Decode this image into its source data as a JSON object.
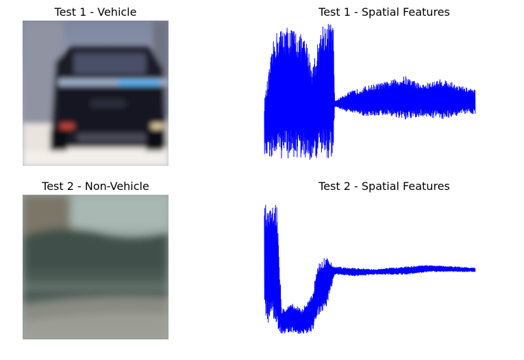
{
  "figure": {
    "panels": [
      {
        "title": "Test 1 - Vehicle",
        "image_label": "vehicle"
      },
      {
        "title": "Test 1 - Spatial Features"
      },
      {
        "title": "Test 2 - Non-Vehicle",
        "image_label": "non-vehicle"
      },
      {
        "title": "Test 2 - Spatial Features"
      }
    ]
  },
  "chart_data": [
    {
      "type": "line",
      "title": "Test 1 - Spatial Features",
      "axis": "off",
      "grid": false,
      "x_count": 3072,
      "series": [
        {
          "color": "#0000ff",
          "envelope": [
            {
              "x": 0,
              "low": 0.05,
              "high": 0.45
            },
            {
              "x": 150,
              "low": 0.03,
              "high": 0.92
            },
            {
              "x": 300,
              "low": 0.03,
              "high": 0.98
            },
            {
              "x": 450,
              "low": 0.03,
              "high": 0.95
            },
            {
              "x": 600,
              "low": 0.02,
              "high": 0.88
            },
            {
              "x": 700,
              "low": 0.02,
              "high": 0.7
            },
            {
              "x": 850,
              "low": 0.04,
              "high": 1.0
            },
            {
              "x": 1000,
              "low": 0.03,
              "high": 1.0
            },
            {
              "x": 1024,
              "low": 0.4,
              "high": 0.44
            },
            {
              "x": 1200,
              "low": 0.36,
              "high": 0.5
            },
            {
              "x": 1500,
              "low": 0.33,
              "high": 0.55
            },
            {
              "x": 1800,
              "low": 0.34,
              "high": 0.58
            },
            {
              "x": 2048,
              "low": 0.3,
              "high": 0.62
            },
            {
              "x": 2300,
              "low": 0.33,
              "high": 0.56
            },
            {
              "x": 2600,
              "low": 0.31,
              "high": 0.6
            },
            {
              "x": 2850,
              "low": 0.34,
              "high": 0.55
            },
            {
              "x": 3071,
              "low": 0.35,
              "high": 0.52
            }
          ]
        }
      ]
    },
    {
      "type": "line",
      "title": "Test 2 - Spatial Features",
      "axis": "off",
      "grid": false,
      "x_count": 3072,
      "series": [
        {
          "color": "#0000ff",
          "envelope": [
            {
              "x": 0,
              "low": 0.12,
              "high": 0.95
            },
            {
              "x": 100,
              "low": 0.08,
              "high": 0.98
            },
            {
              "x": 180,
              "low": 0.06,
              "high": 0.96
            },
            {
              "x": 250,
              "low": 0.02,
              "high": 0.2
            },
            {
              "x": 400,
              "low": 0.03,
              "high": 0.24
            },
            {
              "x": 550,
              "low": 0.01,
              "high": 0.2
            },
            {
              "x": 700,
              "low": 0.04,
              "high": 0.3
            },
            {
              "x": 780,
              "low": 0.14,
              "high": 0.55
            },
            {
              "x": 900,
              "low": 0.2,
              "high": 0.58
            },
            {
              "x": 1024,
              "low": 0.44,
              "high": 0.5
            },
            {
              "x": 1300,
              "low": 0.43,
              "high": 0.49
            },
            {
              "x": 1600,
              "low": 0.44,
              "high": 0.48
            },
            {
              "x": 2048,
              "low": 0.44,
              "high": 0.5
            },
            {
              "x": 2400,
              "low": 0.46,
              "high": 0.51
            },
            {
              "x": 2800,
              "low": 0.46,
              "high": 0.5
            },
            {
              "x": 3071,
              "low": 0.46,
              "high": 0.49
            }
          ]
        }
      ]
    }
  ]
}
